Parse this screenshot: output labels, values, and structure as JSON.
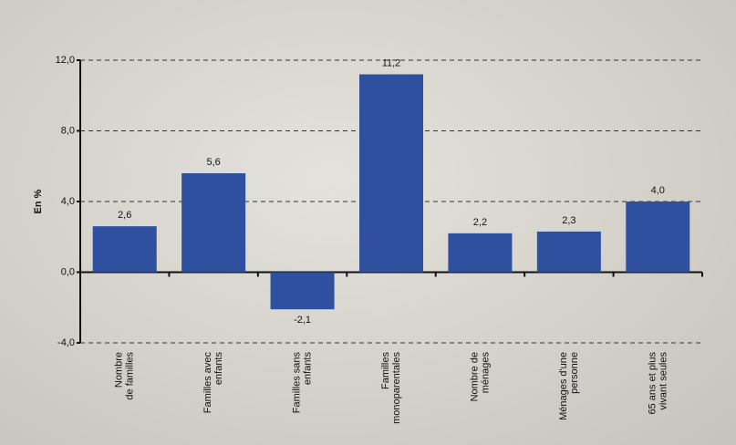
{
  "chart_data": {
    "type": "bar",
    "y_label": "En %",
    "categories": [
      "Nombre\nde familles",
      "Familles avec\nenfants",
      "Familles sans\nenfants",
      "Familles\nmonoparentales",
      "Nombre de\nménages",
      "Ménages d'une\npersonne",
      "65 ans et plus\nvivant seules"
    ],
    "values": [
      2.6,
      5.6,
      -2.1,
      11.2,
      2.2,
      2.3,
      4.0
    ],
    "value_labels": [
      "2,6",
      "5,6",
      "-2,1",
      "11,2",
      "2,2",
      "2,3",
      "4,0"
    ],
    "color": "#2f4f9f",
    "ylim": [
      -4,
      12
    ],
    "yticks": [
      {
        "value": -4,
        "label": "-4,0"
      },
      {
        "value": 0,
        "label": "0,0"
      },
      {
        "value": 4,
        "label": "4,0"
      },
      {
        "value": 8,
        "label": "8,0"
      },
      {
        "value": 12,
        "label": "12,0"
      }
    ],
    "grid": true
  }
}
